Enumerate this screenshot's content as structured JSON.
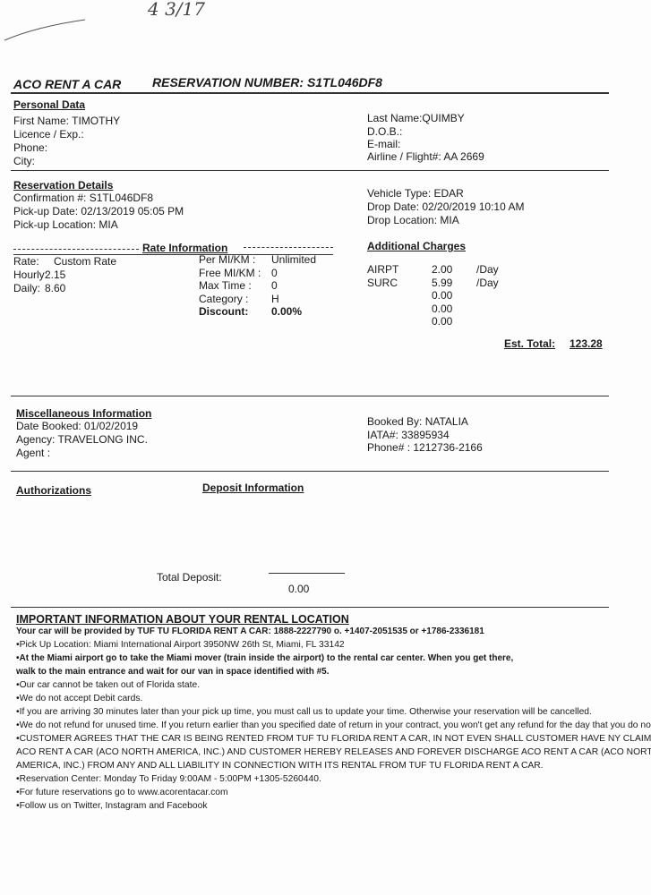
{
  "handwritten_note": "4 3/17",
  "header": {
    "company": "ACO RENT A CAR",
    "reservation_label": "RESERVATION NUMBER:",
    "reservation_number": "S1TL046DF8"
  },
  "personal": {
    "title": "Personal Data",
    "first_name": "First Name: TIMOTHY",
    "licence": "Licence / Exp.:",
    "phone": "Phone:",
    "city": "City:",
    "last_name": "Last Name:QUIMBY",
    "dob": "D.O.B.:",
    "email": "E-mail:",
    "airline": "Airline / Flight#: AA 2669"
  },
  "reservation": {
    "title": "Reservation Details",
    "confirmation": "Confirmation #: S1TL046DF8",
    "pickup_date": "Pick-up Date: 02/13/2019 05:05 PM",
    "pickup_location": "Pick-up Location: MIA",
    "vehicle_type": "Vehicle Type: EDAR",
    "drop_date": "Drop Date: 02/20/2019 10:10 AM",
    "drop_location": "Drop Location: MIA"
  },
  "rate": {
    "title": "Rate Information",
    "rows": [
      [
        "Rate:",
        "Custom Rate"
      ],
      [
        "Hourly:",
        "2.15"
      ],
      [
        "Daily:",
        "8.60"
      ]
    ],
    "right_rows": [
      [
        "Per MI/KM :",
        "Unlimited"
      ],
      [
        "Free MI/KM :",
        "0"
      ],
      [
        "Max Time :",
        "0"
      ],
      [
        "Category :",
        "H"
      ],
      [
        "Discount:",
        "0.00%"
      ]
    ]
  },
  "additional": {
    "title": "Additional Charges",
    "rows": [
      [
        "AIRPT",
        "2.00",
        "/Day"
      ],
      [
        "SURC",
        "5.99",
        "/Day"
      ],
      [
        "",
        "0.00",
        ""
      ],
      [
        "",
        "0.00",
        ""
      ],
      [
        "",
        "0.00",
        ""
      ]
    ],
    "total_label": "Est. Total:",
    "total": "123.28"
  },
  "misc": {
    "title": "Miscellaneous Information",
    "date_booked": "Date Booked: 01/02/2019",
    "agency": "Agency: TRAVELONG INC.",
    "agent": "Agent :",
    "booked_by": "Booked By: NATALIA",
    "iata": "IATA#: 33895934",
    "phone": "Phone# : 1212736-2166"
  },
  "authorizations": {
    "title": "Authorizations"
  },
  "deposit": {
    "title": "Deposit Information",
    "total_label": "Total Deposit:",
    "total": "0.00"
  },
  "important": {
    "title": "IMPORTANT INFORMATION ABOUT YOUR RENTAL LOCATION",
    "lines": [
      "Your car will be provided by TUF TU FLORIDA RENT A CAR: 1888-2227790 o. +1407-2051535 or +1786-2336181",
      "•Pick Up Location: Miami International Airport 3950NW 26th St,  Miami,  FL 33142",
      "•At the Miami airport go to take the Miami mover (train inside the airport) to the rental car center. When you get there,",
      "walk to the main entrance and wait for our van in space identified with #5.",
      "•Our car cannot be taken out of Florida state.",
      "•We do not accept Debit cards.",
      "•If you are arriving 30 minutes later than your pick up time, you must call us to update your time. Otherwise your reservation will be cancelled.",
      "•We do not refund for unused time. If you return earlier than you specified date of return in your contract, you won't get any refund for the day that you do not use.",
      "•CUSTOMER AGREES THAT THE CAR IS BEING RENTED FROM TUF TU FLORIDA RENT A CAR, IN NOT EVEN SHALL CUSTOMER HAVE NY CLAIM AGAIN",
      "ACO RENT A CAR (ACO NORTH AMERICA, INC.) AND CUSTOMER HEREBY RELEASES AND FOREVER DISCHARGE ACO RENT A CAR (ACO NORTH",
      "AMERICA, INC.) FROM ANY AND ALL LIABILITY IN CONNECTION WITH ITS RENTAL FROM TUF TU FLORIDA RENT A CAR.",
      "•Reservation Center: Monday To Friday 9:00AM - 5:00PM +1305-5260440.",
      "•For future reservations go to www.acorentacar.com",
      "•Follow us on Twitter, Instagram and Facebook"
    ]
  }
}
